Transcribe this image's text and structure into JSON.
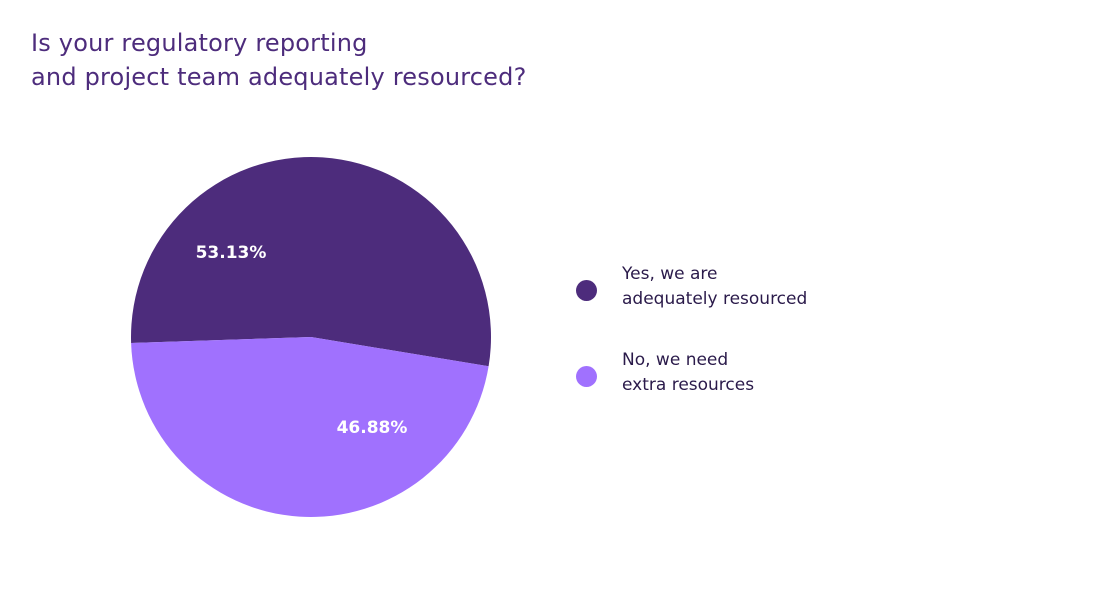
{
  "chart_data": {
    "type": "pie",
    "title": "Is your regulatory reporting and project team adequately resourced?",
    "title_lines": [
      "Is your regulatory reporting",
      "and project team adequately resourced?"
    ],
    "slices": [
      {
        "label": "Yes, we are adequately resourced",
        "label_lines": [
          "Yes, we are",
          "adequately resourced"
        ],
        "value": 53.13,
        "data_label": "53.13%",
        "color": "#4d2c7c"
      },
      {
        "label": "No, we need extra resources",
        "label_lines": [
          "No, we need",
          "extra resources"
        ],
        "value": 46.88,
        "data_label": "46.88%",
        "color": "#a071fe"
      }
    ],
    "legend_position": "right"
  }
}
